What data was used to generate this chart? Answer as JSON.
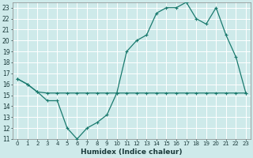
{
  "xlabel": "Humidex (Indice chaleur)",
  "background_color": "#ceeaea",
  "grid_color": "#b8d8d8",
  "line_color": "#1a7a6e",
  "xlim": [
    -0.5,
    23.5
  ],
  "ylim": [
    11,
    23.5
  ],
  "xticks": [
    0,
    1,
    2,
    3,
    4,
    5,
    6,
    7,
    8,
    9,
    10,
    11,
    12,
    13,
    14,
    15,
    16,
    17,
    18,
    19,
    20,
    21,
    22,
    23
  ],
  "yticks": [
    11,
    12,
    13,
    14,
    15,
    16,
    17,
    18,
    19,
    20,
    21,
    22,
    23
  ],
  "series1_x": [
    0,
    1,
    2,
    3,
    4,
    5,
    6,
    7,
    8,
    9,
    10,
    11,
    12,
    13,
    14,
    15,
    16,
    17,
    18,
    19,
    20,
    21,
    22,
    23
  ],
  "series1_y": [
    16.5,
    16.0,
    15.3,
    15.2,
    15.2,
    15.2,
    15.2,
    15.2,
    15.2,
    15.2,
    15.2,
    15.2,
    15.2,
    15.2,
    15.2,
    15.2,
    15.2,
    15.2,
    15.2,
    15.2,
    15.2,
    15.2,
    15.2,
    15.2
  ],
  "series2_x": [
    0,
    1,
    2,
    3,
    4,
    5,
    6,
    7,
    8,
    9,
    10,
    11,
    12,
    13,
    14,
    15,
    16,
    17,
    18,
    19,
    20,
    21,
    22,
    23
  ],
  "series2_y": [
    16.5,
    16.0,
    15.3,
    14.5,
    14.5,
    12.0,
    11.0,
    12.0,
    12.5,
    13.2,
    15.2,
    19.0,
    20.0,
    20.5,
    22.5,
    23.0,
    23.0,
    23.5,
    22.0,
    21.5,
    23.0,
    20.5,
    18.5,
    15.2
  ]
}
